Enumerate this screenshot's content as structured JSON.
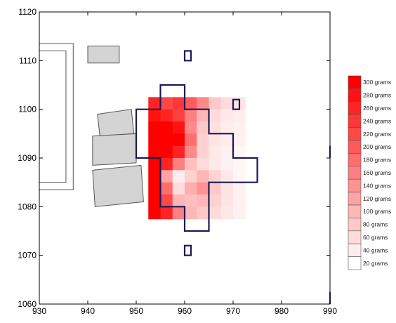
{
  "chart_data": {
    "type": "heatmap",
    "title": "",
    "xlabel": "",
    "ylabel": "",
    "xlim": [
      930,
      990
    ],
    "ylim": [
      1060,
      1120
    ],
    "x_ticks": [
      "930",
      "940",
      "950",
      "960",
      "970",
      "980",
      "990"
    ],
    "y_ticks": [
      "1060",
      "1070",
      "1080",
      "1090",
      "1100",
      "1110",
      "1120"
    ],
    "x_tick_values": [
      930,
      940,
      950,
      960,
      970,
      980,
      990
    ],
    "y_tick_values": [
      1060,
      1070,
      1080,
      1090,
      1100,
      1110,
      1120
    ],
    "heatmap_extent": {
      "x": [
        952.5,
        972.5
      ],
      "y": [
        1077.5,
        1102.5
      ]
    },
    "heatmap_grid": {
      "x_centers": [
        953.75,
        956.25,
        958.75,
        961.25,
        963.75,
        966.25,
        968.75,
        971.25
      ],
      "y_centers": [
        1101.25,
        1098.75,
        1096.25,
        1093.75,
        1091.25,
        1088.75,
        1086.25,
        1083.75,
        1081.25,
        1078.75
      ],
      "values_grams": [
        [
          260,
          220,
          240,
          200,
          150,
          80,
          60,
          50
        ],
        [
          280,
          260,
          230,
          160,
          100,
          60,
          45,
          40
        ],
        [
          300,
          300,
          280,
          150,
          80,
          55,
          40,
          35
        ],
        [
          300,
          300,
          300,
          180,
          70,
          50,
          40,
          35
        ],
        [
          300,
          300,
          260,
          150,
          70,
          45,
          35,
          30
        ],
        [
          300,
          260,
          160,
          90,
          60,
          45,
          35,
          30
        ],
        [
          300,
          120,
          40,
          70,
          100,
          70,
          45,
          30
        ],
        [
          300,
          180,
          60,
          110,
          140,
          80,
          50,
          35
        ],
        [
          300,
          220,
          100,
          90,
          100,
          70,
          50,
          35
        ],
        [
          300,
          260,
          160,
          100,
          80,
          60,
          45,
          35
        ]
      ]
    },
    "colorbar": {
      "labels": [
        "300 grams",
        "280 grams",
        "260 grams",
        "240 grams",
        "220 grams",
        "200 grams",
        "180 grams",
        "160 grams",
        "140 grams",
        "120 grams",
        "100 grams",
        "80 grams",
        "60 grams",
        "40 grams",
        "20 grams"
      ],
      "values": [
        300,
        280,
        260,
        240,
        220,
        200,
        180,
        160,
        140,
        120,
        100,
        80,
        60,
        40,
        20
      ],
      "color_high": "#ff0000",
      "color_low": "#ffffff",
      "placement": "right"
    },
    "grid": false,
    "sampling_outline": [
      [
        955,
        1105
      ],
      [
        960,
        1105
      ],
      [
        960,
        1100
      ],
      [
        965,
        1100
      ],
      [
        965,
        1095
      ],
      [
        970,
        1095
      ],
      [
        970,
        1090
      ],
      [
        975,
        1090
      ],
      [
        975,
        1085
      ],
      [
        965,
        1085
      ],
      [
        965,
        1075
      ],
      [
        960,
        1075
      ],
      [
        960,
        1080
      ],
      [
        955,
        1080
      ],
      [
        955,
        1090
      ],
      [
        950,
        1090
      ],
      [
        950,
        1100
      ],
      [
        955,
        1100
      ]
    ],
    "outline_squares": [
      {
        "x": [
          960,
          961.3
        ],
        "y": [
          1110,
          1112
        ]
      },
      {
        "x": [
          970,
          971.3
        ],
        "y": [
          1100,
          1102
        ]
      },
      {
        "x": [
          960,
          961.3
        ],
        "y": [
          1070,
          1072
        ]
      }
    ],
    "buildings_outline": [
      {
        "x": [
          930,
          937
        ],
        "y": [
          1083.5,
          1113.5
        ]
      },
      {
        "x": [
          930,
          935.5
        ],
        "y": [
          1085,
          1112
        ]
      }
    ],
    "buildings_filled": [
      [
        [
          940,
          1113
        ],
        [
          946.5,
          1113
        ],
        [
          946.5,
          1109.5
        ],
        [
          940,
          1109.5
        ]
      ],
      [
        [
          942,
          1099
        ],
        [
          949,
          1100
        ],
        [
          949.5,
          1095
        ],
        [
          942.5,
          1094.5
        ]
      ],
      [
        [
          941,
          1094.5
        ],
        [
          950,
          1095
        ],
        [
          950,
          1089
        ],
        [
          941,
          1088.5
        ]
      ],
      [
        [
          941,
          1087.5
        ],
        [
          951,
          1088.5
        ],
        [
          951.5,
          1081
        ],
        [
          941.5,
          1080
        ]
      ]
    ],
    "edge_marks": [
      {
        "x": 990,
        "y": [
          1090,
          1092.5
        ]
      },
      {
        "x": 990,
        "y": [
          1060,
          1062.5
        ]
      }
    ],
    "colors": {
      "outline": "#1a1a55",
      "building_fill": "#d4d4d4",
      "building_stroke": "#555555",
      "axis": "#000000"
    }
  }
}
